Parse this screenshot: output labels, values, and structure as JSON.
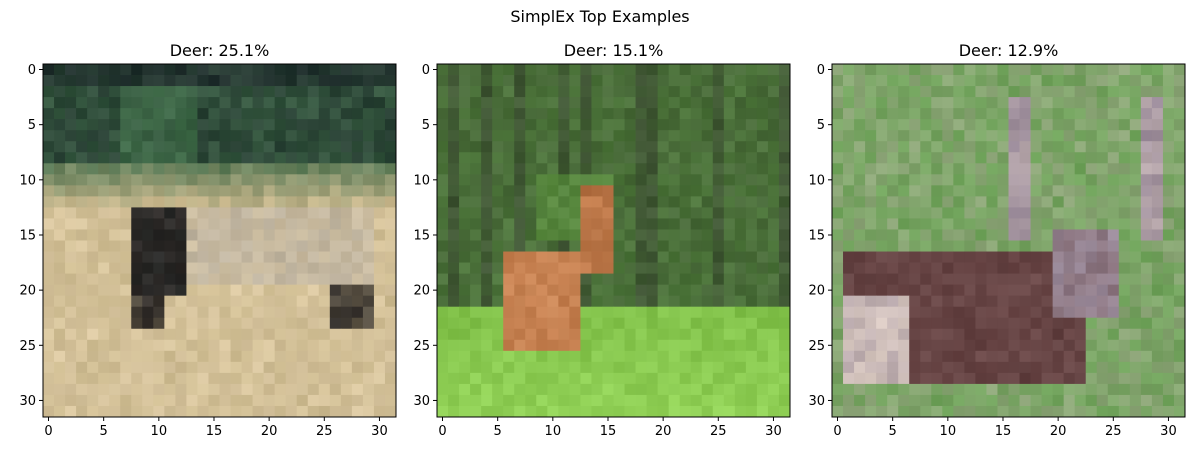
{
  "figure": {
    "suptitle": "SimplEx Top Examples"
  },
  "chart_data": [
    {
      "type": "heatmap",
      "title": "Deer: 25.1%",
      "x_ticks": [
        "0",
        "5",
        "10",
        "15",
        "20",
        "25",
        "30"
      ],
      "y_ticks": [
        "0",
        "5",
        "10",
        "15",
        "20",
        "25",
        "30"
      ],
      "xlim": [
        -0.5,
        31.5
      ],
      "ylim": [
        31.5,
        -0.5
      ],
      "image_size": [
        32,
        32
      ],
      "subject": "elk standing in grassland",
      "palette": [
        "#1e2b2b",
        "#3f6a48",
        "#cdbb90",
        "#d9c6a0",
        "#2e2a28",
        "#bfb4a0"
      ]
    },
    {
      "type": "heatmap",
      "title": "Deer: 15.1%",
      "x_ticks": [
        "0",
        "5",
        "10",
        "15",
        "20",
        "25",
        "30"
      ],
      "y_ticks": [
        "0",
        "5",
        "10",
        "15",
        "20",
        "25",
        "30"
      ],
      "xlim": [
        -0.5,
        31.5
      ],
      "ylim": [
        31.5,
        -0.5
      ],
      "image_size": [
        32,
        32
      ],
      "subject": "young deer in forest",
      "palette": [
        "#3d4f33",
        "#4f7a3c",
        "#5a8a40",
        "#c47e4e",
        "#8fcf55",
        "#7fbf48"
      ]
    },
    {
      "type": "heatmap",
      "title": "Deer: 12.9%",
      "x_ticks": [
        "0",
        "5",
        "10",
        "15",
        "20",
        "25",
        "30"
      ],
      "y_ticks": [
        "0",
        "5",
        "10",
        "15",
        "20",
        "25",
        "30"
      ],
      "xlim": [
        -0.5,
        31.5
      ],
      "ylim": [
        31.5,
        -0.5
      ],
      "image_size": [
        32,
        32
      ],
      "subject": "stag with antlers in grass",
      "palette": [
        "#8fa67a",
        "#6fa35a",
        "#6b4848",
        "#9a8a9a",
        "#d8c8c0",
        "#7f9a68"
      ]
    }
  ]
}
